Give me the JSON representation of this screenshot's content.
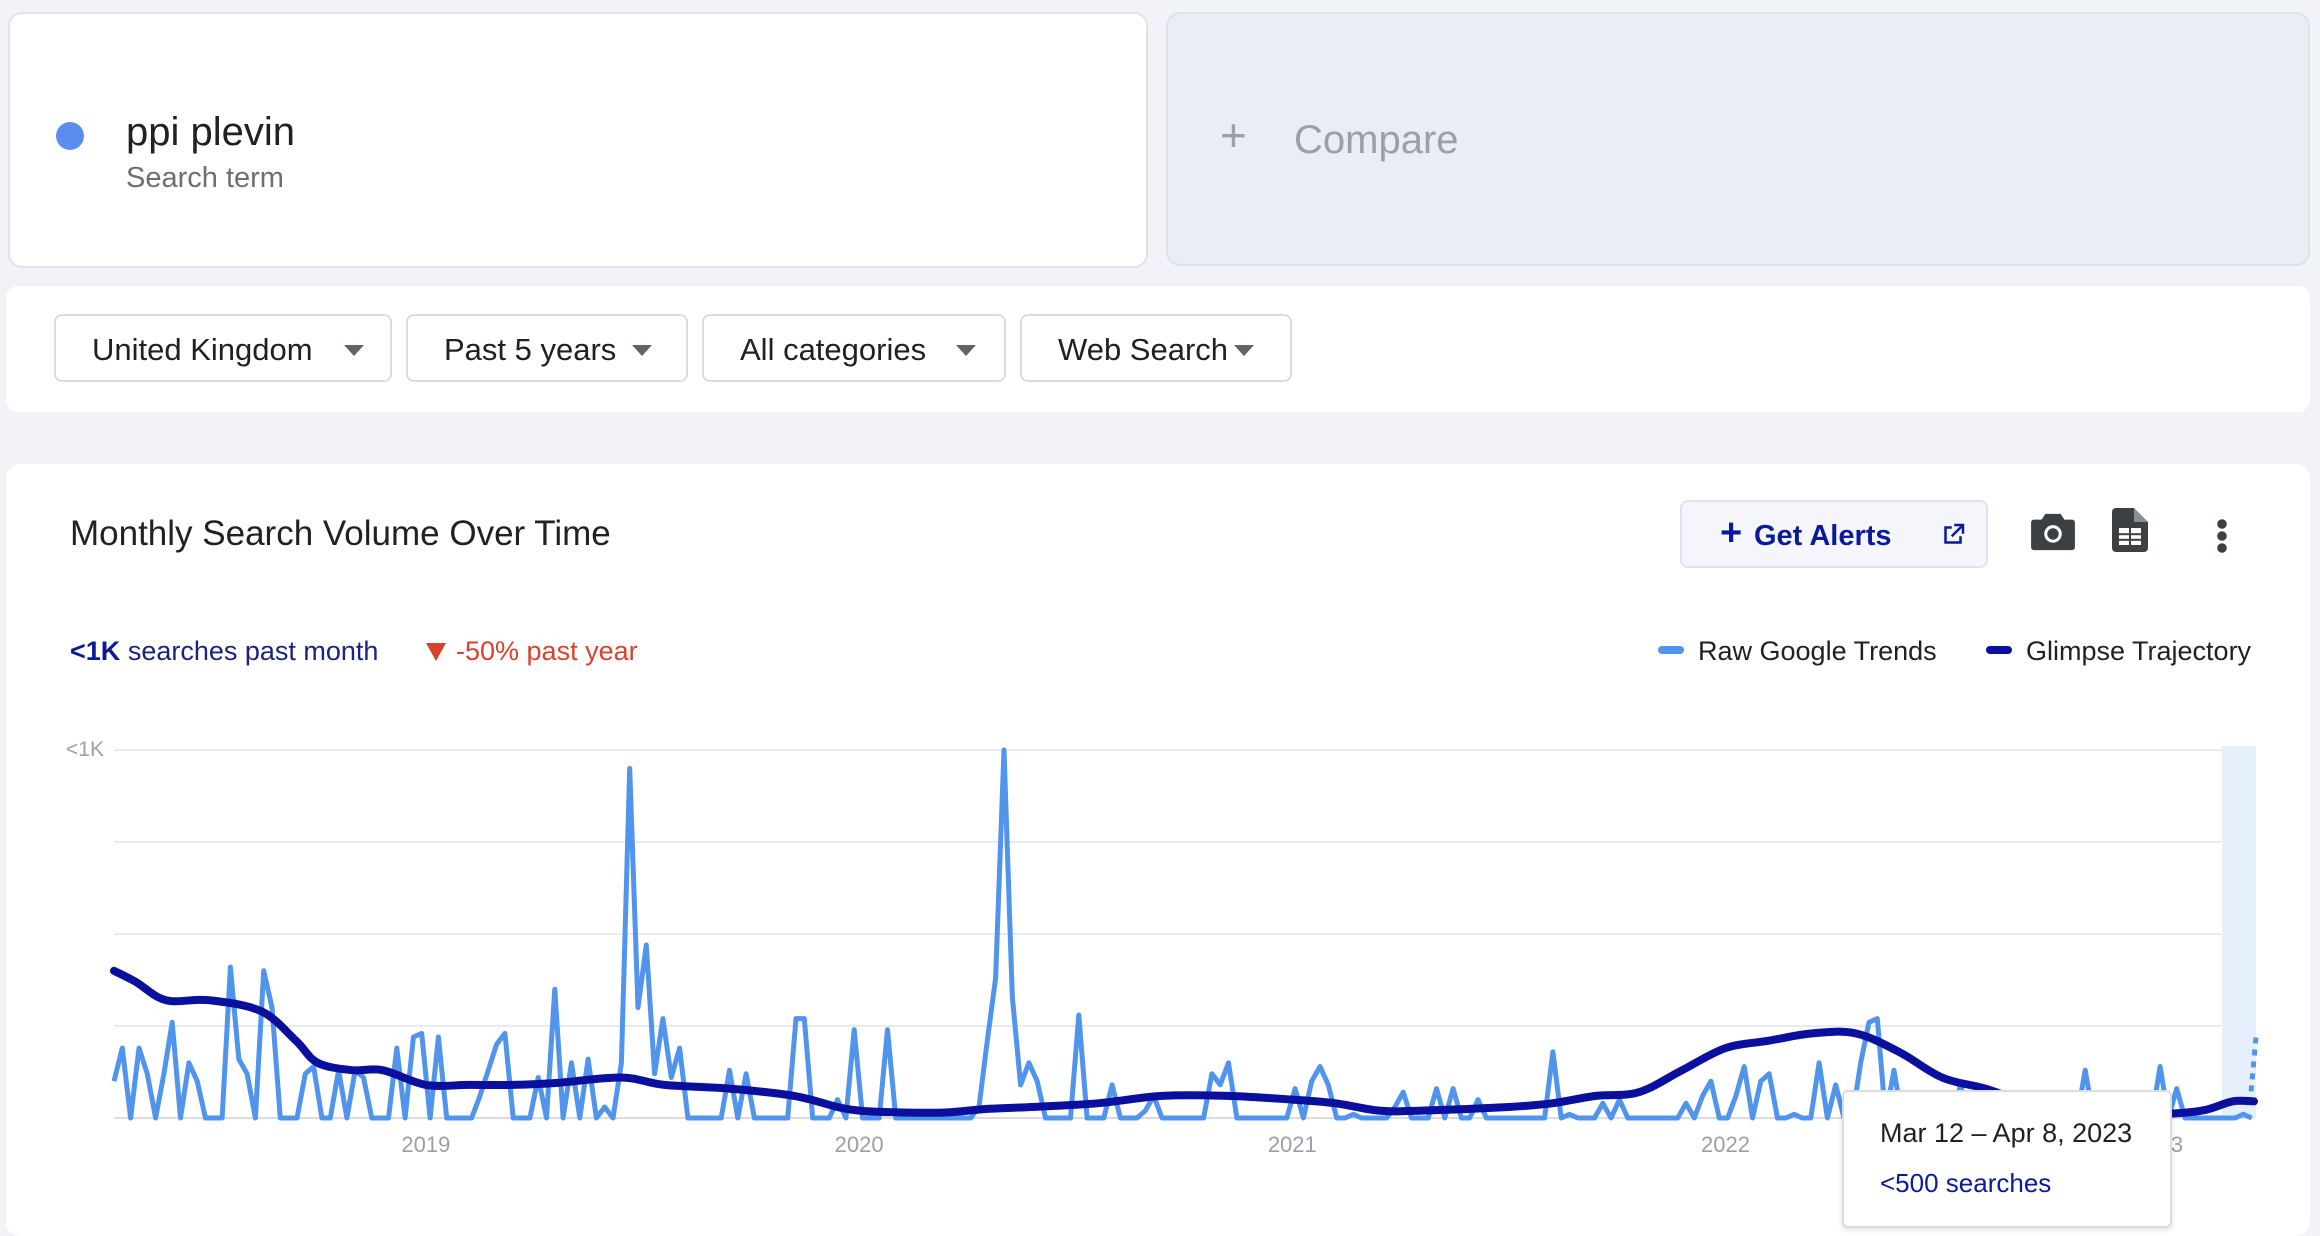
{
  "search_term": {
    "name": "ppi plevin",
    "subtitle": "Search term",
    "dot_color": "#5b8def"
  },
  "compare": {
    "icon": "plus-icon",
    "label": "Compare"
  },
  "filters": [
    {
      "label": "United Kingdom"
    },
    {
      "label": "Past 5 years"
    },
    {
      "label": "All categories"
    },
    {
      "label": "Web Search"
    }
  ],
  "chart_panel": {
    "title": "Monthly Search Volume Over Time",
    "get_alerts_label": "Get Alerts",
    "icons": [
      "external-link-icon",
      "camera-icon",
      "spreadsheet-icon",
      "more-vert-icon"
    ],
    "stat_month_value": "<1K",
    "stat_month_text": "searches past month",
    "stat_year_text": "-50% past year",
    "legend": [
      {
        "label": "Raw Google Trends",
        "color": "#5094ec"
      },
      {
        "label": "Glimpse Trajectory",
        "color": "#0b0f9e"
      }
    ],
    "tooltip": {
      "range": "Mar 12 – Apr 8, 2023",
      "value": "<500 searches"
    }
  },
  "chart_data": {
    "type": "line",
    "title": "",
    "y_top_label": "<1K",
    "x_tick_labels": [
      "2019",
      "2020",
      "2021",
      "2022",
      "2023"
    ],
    "x_ticks": [
      2019.0,
      2020.0,
      2021.0,
      2022.0,
      2023.0
    ],
    "xlim": [
      2018.28,
      2023.22
    ],
    "ylim": [
      0,
      100
    ],
    "grid": true,
    "series": [
      {
        "name": "Raw Google Trends",
        "color": "#5094ec",
        "x_start": 2018.28,
        "x_step": 0.0192,
        "values": [
          10,
          19,
          0,
          19,
          12,
          0,
          12,
          26,
          0,
          15,
          10,
          0,
          0,
          0,
          41,
          16,
          12,
          0,
          40,
          30,
          0,
          0,
          0,
          12,
          14,
          0,
          0,
          13,
          0,
          13,
          11,
          0,
          0,
          0,
          19,
          0,
          22,
          23,
          0,
          22,
          0,
          0,
          0,
          0,
          6,
          13,
          20,
          23,
          0,
          0,
          0,
          11,
          0,
          35,
          0,
          15,
          0,
          16,
          0,
          3,
          0,
          15,
          95,
          30,
          47,
          12,
          27,
          11,
          19,
          0,
          0,
          0,
          0,
          0,
          13,
          0,
          12,
          0,
          0,
          0,
          0,
          0,
          27,
          27,
          0,
          0,
          0,
          5,
          0,
          24,
          0,
          0,
          0,
          24,
          0,
          0,
          0,
          0,
          0,
          0,
          0,
          0,
          0,
          0,
          3,
          21,
          38,
          100,
          33,
          9,
          15,
          10,
          0,
          0,
          0,
          0,
          28,
          0,
          0,
          0,
          9,
          0,
          0,
          0,
          2,
          6,
          0,
          0,
          0,
          0,
          0,
          0,
          12,
          9,
          15,
          0,
          0,
          0,
          0,
          0,
          0,
          0,
          8,
          0,
          10,
          14,
          9,
          0,
          0,
          1,
          0,
          0,
          0,
          0,
          3,
          7,
          0,
          0,
          0,
          8,
          0,
          8,
          0,
          0,
          5,
          0,
          0,
          0,
          0,
          0,
          0,
          0,
          0,
          18,
          0,
          1,
          0,
          0,
          0,
          4,
          0,
          5,
          0,
          0,
          0,
          0,
          0,
          0,
          0,
          4,
          0,
          6,
          10,
          0,
          0,
          6,
          14,
          0,
          10,
          12,
          0,
          0,
          1,
          0,
          0,
          15,
          0,
          9,
          0,
          0,
          15,
          26,
          27,
          0,
          13,
          0,
          0,
          0,
          0,
          0,
          0,
          0,
          9,
          0,
          0,
          0,
          5,
          0,
          0,
          4,
          0,
          0,
          1,
          1,
          0,
          0,
          0,
          13,
          0,
          0,
          0,
          0,
          0,
          0,
          0,
          0,
          14,
          0,
          8,
          0,
          0,
          0,
          0,
          0,
          0,
          0,
          1,
          0,
          0,
          0,
          12,
          0,
          12,
          0,
          0,
          0,
          5,
          0,
          0,
          0,
          0,
          0,
          0,
          0,
          0,
          0,
          6,
          0,
          15,
          16,
          0,
          0,
          0,
          0,
          3,
          0,
          0,
          2,
          0,
          0,
          0,
          0,
          1,
          0,
          9,
          0,
          7,
          0,
          0,
          0,
          0,
          2,
          0,
          0,
          0,
          0,
          0,
          0,
          0,
          0,
          0,
          5,
          0,
          0,
          0,
          12,
          0,
          0,
          0,
          0,
          0,
          0,
          0,
          15,
          0,
          0,
          0,
          0,
          0,
          0,
          0,
          0,
          9,
          0,
          0,
          0,
          0,
          0,
          0,
          0,
          0,
          0,
          0,
          0,
          2,
          1,
          0,
          0,
          0,
          9,
          0,
          0,
          0,
          0,
          0,
          0,
          0,
          0,
          0,
          0,
          9,
          0,
          0,
          3,
          0,
          0,
          8,
          10,
          0,
          0,
          1,
          0,
          0,
          0,
          0,
          0,
          0,
          1,
          0,
          0,
          0,
          0,
          0,
          0,
          0,
          0,
          0,
          0,
          0,
          0,
          0,
          1,
          0,
          0,
          0,
          0,
          0,
          0,
          1,
          0,
          0,
          0,
          0,
          0,
          0,
          0,
          0,
          0,
          0,
          0,
          5,
          0,
          9,
          0,
          0,
          0,
          2,
          0,
          0,
          14,
          0,
          0,
          0,
          0,
          0,
          0,
          0,
          0,
          0,
          0,
          1,
          0,
          0,
          0,
          0,
          0,
          0,
          0,
          0,
          0,
          0,
          0,
          0,
          0,
          0,
          0,
          0,
          0,
          0,
          0,
          0,
          0,
          0,
          0,
          0,
          0,
          0,
          0,
          0,
          0,
          0,
          0,
          0,
          0,
          0,
          0,
          0,
          0,
          0,
          1,
          0,
          0,
          0,
          0,
          0,
          0,
          0,
          0,
          0,
          0,
          0,
          0,
          3,
          0,
          0,
          0,
          0,
          0,
          0,
          0,
          0,
          0,
          0,
          0,
          0,
          0,
          0,
          0,
          0,
          0,
          0,
          0,
          0,
          0,
          0,
          0,
          0,
          0,
          0,
          0,
          0,
          0,
          0,
          1,
          0,
          0,
          0,
          0,
          0,
          0,
          0,
          0,
          0,
          0,
          0,
          0,
          0,
          0,
          0,
          0,
          0,
          0,
          0,
          0,
          0,
          0,
          0,
          0,
          0,
          0,
          0,
          0,
          0,
          0,
          0
        ]
      },
      {
        "name": "Glimpse Trajectory",
        "color": "#0b0f9e",
        "x": [
          2018.28,
          2018.33,
          2018.4,
          2018.5,
          2018.62,
          2018.7,
          2018.75,
          2018.83,
          2018.9,
          2019.0,
          2019.1,
          2019.2,
          2019.3,
          2019.45,
          2019.55,
          2019.7,
          2019.85,
          2019.95,
          2020.0,
          2020.1,
          2020.2,
          2020.3,
          2020.4,
          2020.55,
          2020.7,
          2020.85,
          2021.0,
          2021.1,
          2021.2,
          2021.3,
          2021.5,
          2021.6,
          2021.7,
          2021.8,
          2021.9,
          2022.0,
          2022.1,
          2022.2,
          2022.3,
          2022.4,
          2022.5,
          2022.6,
          2022.7,
          2022.8,
          2022.9,
          2023.0,
          2023.1,
          2023.17,
          2023.22
        ],
        "values": [
          40,
          37,
          32,
          32,
          29,
          21,
          15,
          13,
          13,
          9,
          9,
          9,
          9.5,
          11,
          9,
          8,
          6,
          3,
          2,
          1.5,
          1.5,
          2.5,
          3,
          4,
          6,
          6,
          5,
          4,
          2,
          2,
          3,
          4,
          6,
          7,
          13,
          19,
          21,
          23,
          23,
          18,
          11,
          8,
          4,
          3,
          1,
          1,
          2,
          4.5,
          4.5
        ]
      }
    ]
  }
}
